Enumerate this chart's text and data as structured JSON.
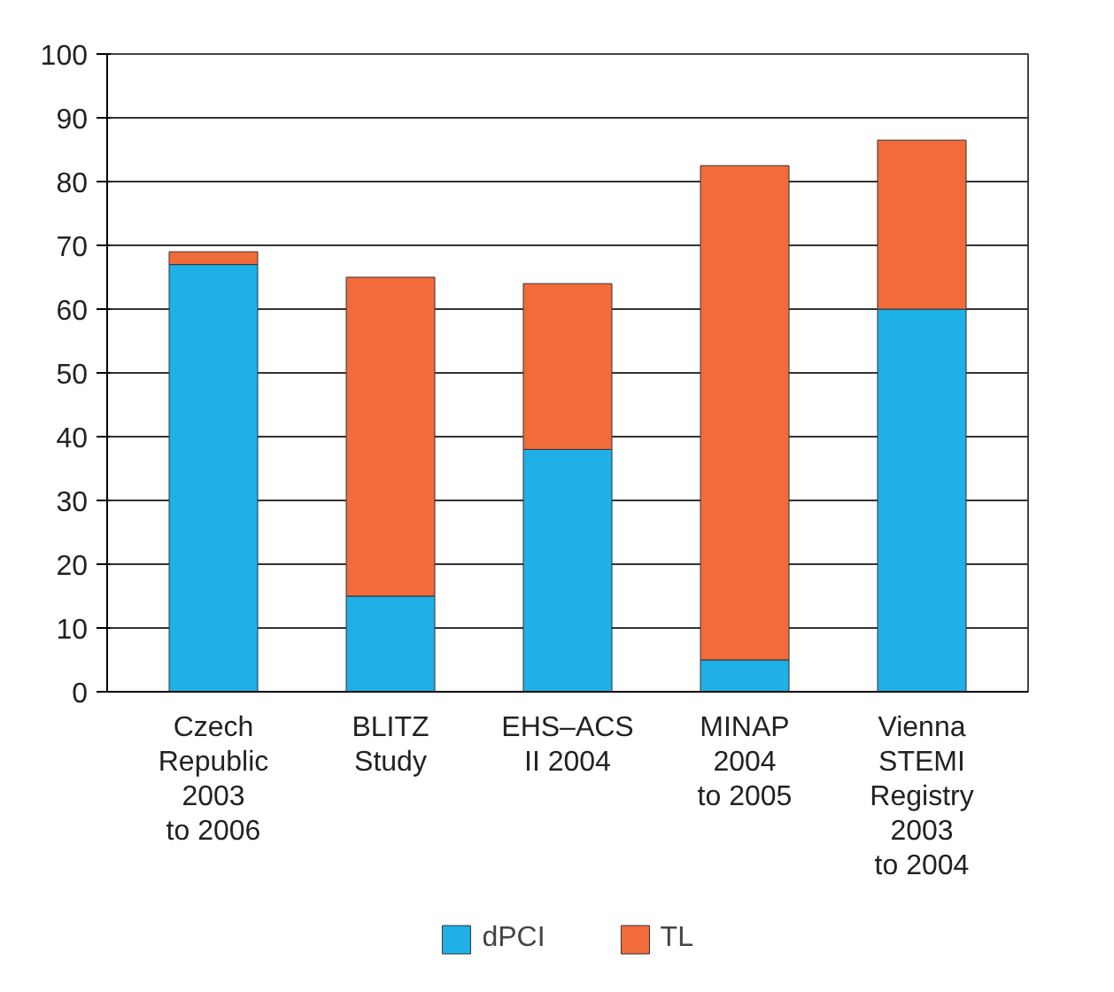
{
  "chart_data": {
    "type": "bar",
    "stacked": true,
    "categories": [
      "Czech\nRepublic\n2003\nto 2006",
      "BLITZ\nStudy",
      "EHS–ACS\nII 2004",
      "MINAP\n2004\nto 2005",
      "Vienna\nSTEMI\nRegistry\n2003\nto 2004"
    ],
    "series": [
      {
        "name": "dPCI",
        "color": "#1eb0e6",
        "values": [
          67,
          15,
          38,
          5,
          60
        ]
      },
      {
        "name": "TL",
        "color": "#f26b3a",
        "values": [
          2,
          50,
          26,
          77.5,
          26.5
        ]
      }
    ],
    "ylim": [
      0,
      100
    ],
    "yticks": [
      0,
      10,
      20,
      30,
      40,
      50,
      60,
      70,
      80,
      90,
      100
    ],
    "grid": "y",
    "legend": "bottom"
  }
}
